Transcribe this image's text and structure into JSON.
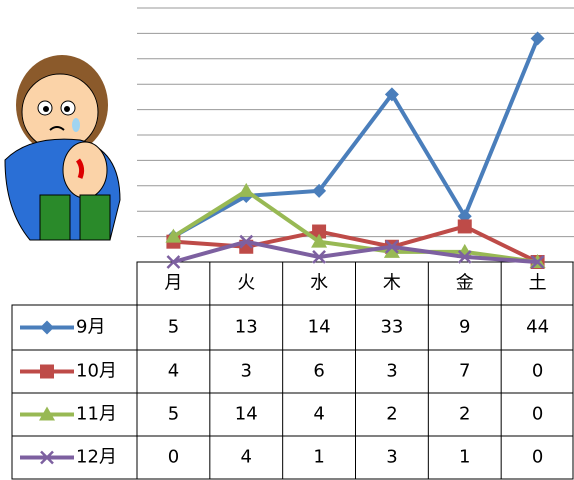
{
  "chart_data": {
    "type": "line",
    "categories": [
      "月",
      "火",
      "水",
      "木",
      "金",
      "土"
    ],
    "series": [
      {
        "name": "9月",
        "color": "#4a7ebb",
        "marker": "diamond",
        "values": [
          5,
          13,
          14,
          33,
          9,
          44
        ]
      },
      {
        "name": "10月",
        "color": "#be4b48",
        "marker": "square",
        "values": [
          4,
          3,
          6,
          3,
          7,
          0
        ]
      },
      {
        "name": "11月",
        "color": "#98b954",
        "marker": "triangle",
        "values": [
          5,
          14,
          4,
          2,
          2,
          0
        ]
      },
      {
        "name": "12月",
        "color": "#7d60a0",
        "marker": "x",
        "values": [
          0,
          4,
          1,
          3,
          1,
          0
        ]
      }
    ],
    "ylim": [
      0,
      50
    ],
    "yticks": [
      0,
      5,
      10,
      15,
      20,
      25,
      30,
      35,
      40,
      45,
      50
    ],
    "grid": true
  }
}
